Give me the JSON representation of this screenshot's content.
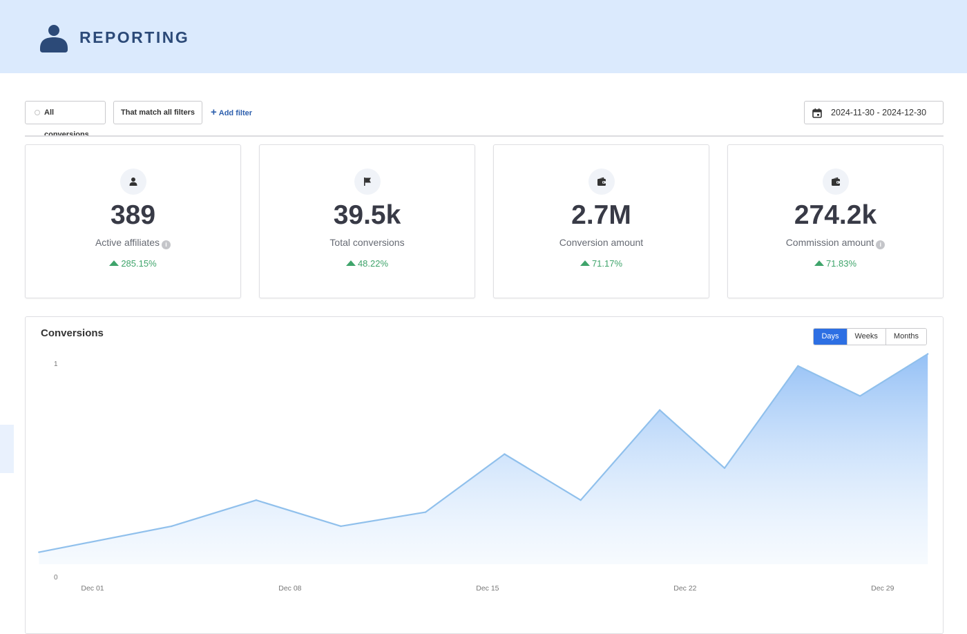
{
  "header": {
    "title": "REPORTING",
    "icon": "user-icon"
  },
  "filters": {
    "all_conversions_label": "All conversions",
    "match_label": "That match all filters",
    "add_filter_label": "Add filter",
    "date_range": "2024-11-30 - 2024-12-30"
  },
  "stats": [
    {
      "icon": "user-icon",
      "value": "389",
      "label": "Active affiliates",
      "has_info": true,
      "delta": "285.15%"
    },
    {
      "icon": "flag-icon",
      "value": "39.5k",
      "label": "Total conversions",
      "has_info": false,
      "delta": "48.22%"
    },
    {
      "icon": "wallet-icon",
      "value": "2.7M",
      "label": "Conversion amount",
      "has_info": false,
      "delta": "71.17%"
    },
    {
      "icon": "wallet-icon",
      "value": "274.2k",
      "label": "Commission amount",
      "has_info": true,
      "delta": "71.83%"
    }
  ],
  "chart_panel": {
    "title": "Conversions",
    "granularity_options": [
      "Days",
      "Weeks",
      "Months"
    ],
    "selected": "Days"
  },
  "colors": {
    "accent": "#2d6fe3",
    "positive": "#3fa46b",
    "line": "#90c0ec",
    "header_bg": "#dbeafd"
  },
  "chart_data": {
    "type": "area",
    "title": "Conversions",
    "xlabel": "",
    "ylabel": "",
    "ylim": [
      0,
      1
    ],
    "y_ticks": [
      "0",
      "1"
    ],
    "x_ticks": [
      "Dec 01",
      "Dec 08",
      "Dec 15",
      "Dec 22",
      "Dec 29"
    ],
    "series": [
      {
        "x": [
          -0.9,
          3.8,
          6.8,
          9.8,
          12.8,
          15.6,
          18.3,
          21.1,
          23.4,
          26.0,
          28.2,
          30.6
        ],
        "values": [
          0.06,
          0.19,
          0.32,
          0.19,
          0.26,
          0.55,
          0.32,
          0.77,
          0.48,
          0.99,
          0.84,
          1.05
        ]
      }
    ],
    "grid": false,
    "legend": "none"
  }
}
